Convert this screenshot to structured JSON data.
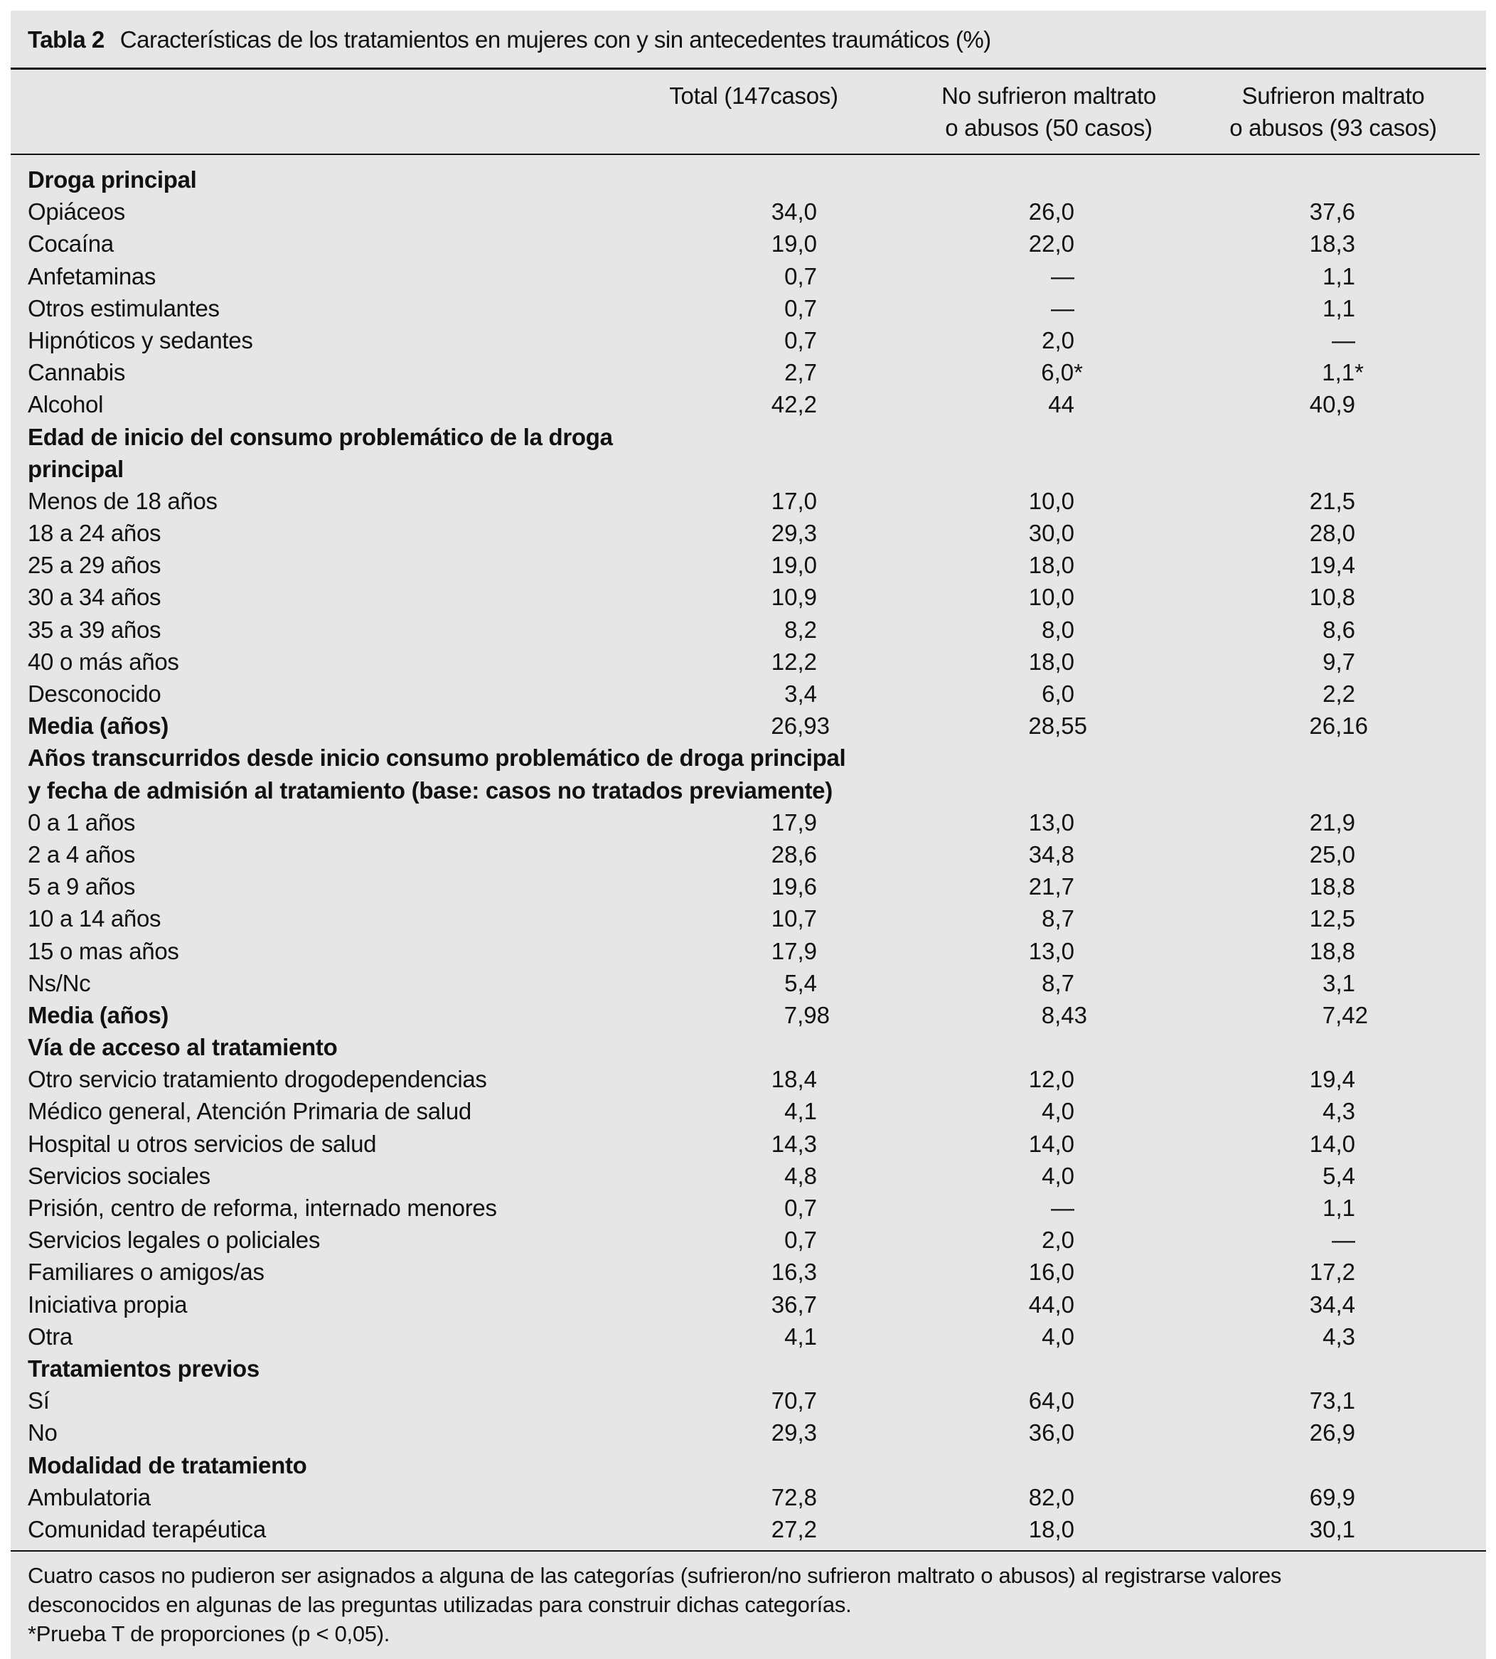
{
  "table": {
    "label": "Tabla 2",
    "title": "Características de los tratamientos en mujeres con y sin antecedentes traumáticos (%)",
    "columns": [
      "Total (147casos)",
      "No sufrieron maltrato\no abusos (50 casos)",
      "Sufrieron maltrato\no abusos (93 casos)"
    ],
    "rows": [
      {
        "type": "section",
        "label": "Droga principal"
      },
      {
        "type": "row",
        "label": "Opiáceos",
        "values": [
          "34,0",
          "26,0",
          "37,6"
        ]
      },
      {
        "type": "row",
        "label": "Cocaína",
        "values": [
          "19,0",
          "22,0",
          "18,3"
        ]
      },
      {
        "type": "row",
        "label": "Anfetaminas",
        "values": [
          "0,7",
          "—",
          "1,1"
        ]
      },
      {
        "type": "row",
        "label": "Otros estimulantes",
        "values": [
          "0,7",
          "—",
          "1,1"
        ]
      },
      {
        "type": "row",
        "label": "Hipnóticos y sedantes",
        "values": [
          "0,7",
          "2,0",
          "—"
        ]
      },
      {
        "type": "row",
        "label": "Cannabis",
        "values": [
          "2,7",
          "6,0*",
          "1,1*"
        ]
      },
      {
        "type": "row",
        "label": "Alcohol",
        "values": [
          "42,2",
          "44",
          "40,9"
        ]
      },
      {
        "type": "section",
        "label": "Edad de inicio del consumo problemático de la droga\nprincipal"
      },
      {
        "type": "row",
        "label": "Menos de 18 años",
        "values": [
          "17,0",
          "10,0",
          "21,5"
        ]
      },
      {
        "type": "row",
        "label": "18 a 24 años",
        "values": [
          "29,3",
          "30,0",
          "28,0"
        ]
      },
      {
        "type": "row",
        "label": "25 a 29 años",
        "values": [
          "19,0",
          "18,0",
          "19,4"
        ]
      },
      {
        "type": "row",
        "label": "30 a 34 años",
        "values": [
          "10,9",
          "10,0",
          "10,8"
        ]
      },
      {
        "type": "row",
        "label": "35 a 39 años",
        "values": [
          "8,2",
          "8,0",
          "8,6"
        ]
      },
      {
        "type": "row",
        "label": "40 o más años",
        "values": [
          "12,2",
          "18,0",
          "9,7"
        ]
      },
      {
        "type": "row",
        "label": "Desconocido",
        "values": [
          "3,4",
          "6,0",
          "2,2"
        ]
      },
      {
        "type": "mean",
        "label": "Media (años)",
        "values": [
          "26,93",
          "28,55",
          "26,16"
        ]
      },
      {
        "type": "section",
        "label": "Años transcurridos desde inicio consumo problemático de droga principal\ny fecha de admisión al tratamiento (base: casos no tratados previamente)"
      },
      {
        "type": "row",
        "label": "0 a 1 años",
        "values": [
          "17,9",
          "13,0",
          "21,9"
        ]
      },
      {
        "type": "row",
        "label": "2 a 4 años",
        "values": [
          "28,6",
          "34,8",
          "25,0"
        ]
      },
      {
        "type": "row",
        "label": "5 a 9 años",
        "values": [
          "19,6",
          "21,7",
          "18,8"
        ]
      },
      {
        "type": "row",
        "label": "10 a 14 años",
        "values": [
          "10,7",
          "8,7",
          "12,5"
        ]
      },
      {
        "type": "row",
        "label": "15 o mas años",
        "values": [
          "17,9",
          "13,0",
          "18,8"
        ]
      },
      {
        "type": "row",
        "label": "Ns/Nc",
        "values": [
          "5,4",
          "8,7",
          "3,1"
        ]
      },
      {
        "type": "mean",
        "label": "Media (años)",
        "values": [
          "7,98",
          "8,43",
          "7,42"
        ]
      },
      {
        "type": "section",
        "label": "Vía de acceso al tratamiento"
      },
      {
        "type": "row",
        "label": "Otro servicio tratamiento drogodependencias",
        "values": [
          "18,4",
          "12,0",
          "19,4"
        ]
      },
      {
        "type": "row",
        "label": "Médico general, Atención Primaria de salud",
        "values": [
          "4,1",
          "4,0",
          "4,3"
        ]
      },
      {
        "type": "row",
        "label": "Hospital u otros servicios de salud",
        "values": [
          "14,3",
          "14,0",
          "14,0"
        ]
      },
      {
        "type": "row",
        "label": "Servicios sociales",
        "values": [
          "4,8",
          "4,0",
          "5,4"
        ]
      },
      {
        "type": "row",
        "label": "Prisión, centro de reforma, internado menores",
        "values": [
          "0,7",
          "—",
          "1,1"
        ]
      },
      {
        "type": "row",
        "label": "Servicios legales o policiales",
        "values": [
          "0,7",
          "2,0",
          "—"
        ]
      },
      {
        "type": "row",
        "label": "Familiares o amigos/as",
        "values": [
          "16,3",
          "16,0",
          "17,2"
        ]
      },
      {
        "type": "row",
        "label": "Iniciativa propia",
        "values": [
          "36,7",
          "44,0",
          "34,4"
        ]
      },
      {
        "type": "row",
        "label": "Otra",
        "values": [
          "4,1",
          "4,0",
          "4,3"
        ]
      },
      {
        "type": "section",
        "label": "Tratamientos previos"
      },
      {
        "type": "row",
        "label": "Sí",
        "values": [
          "70,7",
          "64,0",
          "73,1"
        ]
      },
      {
        "type": "row",
        "label": "No",
        "values": [
          "29,3",
          "36,0",
          "26,9"
        ]
      },
      {
        "type": "section",
        "label": "Modalidad de tratamiento"
      },
      {
        "type": "row",
        "label": "Ambulatoria",
        "values": [
          "72,8",
          "82,0",
          "69,9"
        ]
      },
      {
        "type": "row",
        "label": "Comunidad terapéutica",
        "values": [
          "27,2",
          "18,0",
          "30,1"
        ]
      }
    ],
    "footnotes": [
      "Cuatro casos no pudieron ser asignados a alguna de las categorías (sufrieron/no sufrieron maltrato o abusos) al registrarse valores",
      "desconocidos en algunas de las preguntas utilizadas para construir dichas categorías.",
      "*Prueba T de proporciones (p < 0,05)."
    ]
  }
}
